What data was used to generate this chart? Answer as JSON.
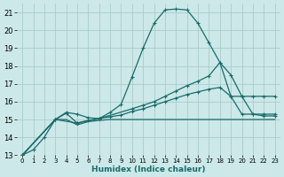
{
  "title": "",
  "xlabel": "Humidex (Indice chaleur)",
  "bg_color": "#cce8e8",
  "grid_color": "#aacccc",
  "line_color": "#1a6b6b",
  "xlim": [
    -0.5,
    23.5
  ],
  "ylim": [
    13,
    21.5
  ],
  "xticks": [
    0,
    1,
    2,
    3,
    4,
    5,
    6,
    7,
    8,
    9,
    10,
    11,
    12,
    13,
    14,
    15,
    16,
    17,
    18,
    19,
    20,
    21,
    22,
    23
  ],
  "yticks": [
    13,
    14,
    15,
    16,
    17,
    18,
    19,
    20,
    21
  ],
  "line1_x": [
    0,
    1,
    2,
    3,
    4,
    5,
    6,
    7,
    8,
    9,
    10,
    11,
    12,
    13,
    14,
    15,
    16,
    17,
    18,
    19,
    20,
    21,
    22,
    23
  ],
  "line1_y": [
    13.0,
    13.3,
    14.0,
    15.0,
    15.4,
    15.3,
    15.1,
    15.05,
    15.4,
    15.85,
    17.4,
    19.0,
    20.4,
    21.15,
    21.2,
    21.15,
    20.4,
    19.3,
    18.2,
    17.5,
    16.3,
    15.3,
    15.2,
    15.2
  ],
  "line2_x": [
    0,
    3,
    5,
    7,
    10,
    11,
    12,
    13,
    14,
    15,
    16,
    17,
    18,
    19,
    20,
    21,
    22,
    23
  ],
  "line2_y": [
    13.0,
    15.0,
    14.8,
    15.05,
    15.6,
    15.8,
    16.0,
    16.3,
    16.6,
    16.9,
    17.15,
    17.45,
    18.2,
    16.3,
    15.3,
    15.3,
    15.3,
    15.3
  ],
  "line3_x": [
    0,
    3,
    4,
    5,
    6,
    7,
    8,
    9,
    10,
    11,
    12,
    13,
    14,
    15,
    16,
    17,
    18,
    19,
    20,
    21,
    22,
    23
  ],
  "line3_y": [
    13.0,
    15.0,
    15.35,
    14.8,
    14.95,
    15.05,
    15.15,
    15.25,
    15.45,
    15.6,
    15.8,
    16.0,
    16.2,
    16.4,
    16.55,
    16.7,
    16.8,
    16.3,
    16.3,
    16.3,
    16.3,
    16.3
  ],
  "line4_x": [
    0,
    3,
    4,
    5,
    6,
    7,
    8,
    9,
    10,
    11,
    12,
    13,
    14,
    15,
    16,
    17,
    18,
    19,
    20,
    21,
    22,
    23
  ],
  "line4_y": [
    13.0,
    15.0,
    15.0,
    14.7,
    14.88,
    14.95,
    15.0,
    15.0,
    15.0,
    15.0,
    15.0,
    15.0,
    15.0,
    15.0,
    15.0,
    15.0,
    15.0,
    15.0,
    15.0,
    15.0,
    15.0,
    15.0
  ]
}
